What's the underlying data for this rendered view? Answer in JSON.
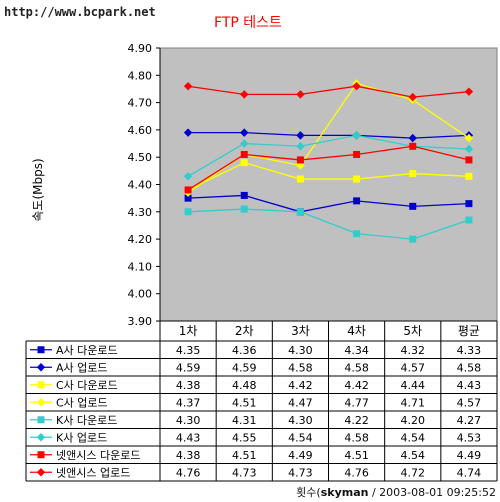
{
  "watermark": "http://www.bcpark.net",
  "footer": {
    "prefix": "횟수(",
    "user": "skyman",
    "timestamp": " / 2003-08-01 09:25:52"
  },
  "chart_data": {
    "type": "line",
    "title": "FTP 테스트",
    "ylabel": "속도(Mbps)",
    "xlabel": "",
    "ylim": [
      3.9,
      4.9
    ],
    "yticks": [
      "3.90",
      "4.00",
      "4.10",
      "4.20",
      "4.30",
      "4.40",
      "4.50",
      "4.60",
      "4.70",
      "4.80",
      "4.90"
    ],
    "categories": [
      "1차",
      "2차",
      "3차",
      "4차",
      "5차",
      "평균"
    ],
    "grid": false,
    "plot_background": "#c0c0c0",
    "legend": "data-table-below",
    "series": [
      {
        "name": "A사 다운로드",
        "color": "#0000cc",
        "marker": "square",
        "values": [
          4.35,
          4.36,
          4.3,
          4.34,
          4.32,
          4.33
        ],
        "labels": [
          "4.35",
          "4.36",
          "4.30",
          "4.34",
          "4.32",
          "4.33"
        ]
      },
      {
        "name": "A사 업로드",
        "color": "#0000cc",
        "marker": "diamond",
        "values": [
          4.59,
          4.59,
          4.58,
          4.58,
          4.57,
          4.58
        ],
        "labels": [
          "4.59",
          "4.59",
          "4.58",
          "4.58",
          "4.57",
          "4.58"
        ]
      },
      {
        "name": "C사 다운로드",
        "color": "#ffff00",
        "marker": "square",
        "values": [
          4.38,
          4.48,
          4.42,
          4.42,
          4.44,
          4.43
        ],
        "labels": [
          "4.38",
          "4.48",
          "4.42",
          "4.42",
          "4.44",
          "4.43"
        ]
      },
      {
        "name": "C사 업로드",
        "color": "#ffff00",
        "marker": "diamond",
        "values": [
          4.37,
          4.51,
          4.47,
          4.77,
          4.71,
          4.57
        ],
        "labels": [
          "4.37",
          "4.51",
          "4.47",
          "4.77",
          "4.71",
          "4.57"
        ]
      },
      {
        "name": "K사 다운로드",
        "color": "#33cccc",
        "marker": "square",
        "values": [
          4.3,
          4.31,
          4.3,
          4.22,
          4.2,
          4.27
        ],
        "labels": [
          "4.30",
          "4.31",
          "4.30",
          "4.22",
          "4.20",
          "4.27"
        ]
      },
      {
        "name": "K사 업로드",
        "color": "#33cccc",
        "marker": "diamond",
        "values": [
          4.43,
          4.55,
          4.54,
          4.58,
          4.54,
          4.53
        ],
        "labels": [
          "4.43",
          "4.55",
          "4.54",
          "4.58",
          "4.54",
          "4.53"
        ]
      },
      {
        "name": "넷앤시스 다운로드",
        "color": "#ff0000",
        "marker": "square",
        "values": [
          4.38,
          4.51,
          4.49,
          4.51,
          4.54,
          4.49
        ],
        "labels": [
          "4.38",
          "4.51",
          "4.49",
          "4.51",
          "4.54",
          "4.49"
        ]
      },
      {
        "name": "넷앤시스 업로드",
        "color": "#ff0000",
        "marker": "diamond",
        "values": [
          4.76,
          4.73,
          4.73,
          4.76,
          4.72,
          4.74
        ],
        "labels": [
          "4.76",
          "4.73",
          "4.73",
          "4.76",
          "4.72",
          "4.74"
        ]
      }
    ]
  }
}
